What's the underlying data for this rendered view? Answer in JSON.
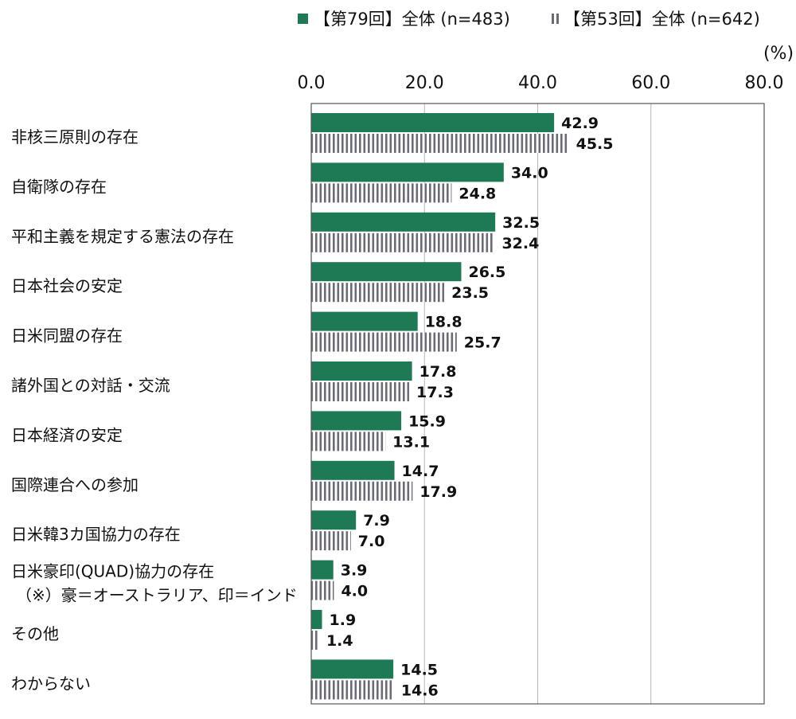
{
  "chart_data": {
    "type": "bar",
    "orientation": "horizontal",
    "unit_label": "(%)",
    "xlim": [
      0,
      80
    ],
    "xticks": [
      "0.0",
      "20.0",
      "40.0",
      "60.0",
      "80.0"
    ],
    "xtick_values": [
      0,
      20,
      40,
      60,
      80
    ],
    "grid": true,
    "legend_position": "top",
    "categories": [
      [
        "非核三原則の存在"
      ],
      [
        "自衛隊の存在"
      ],
      [
        "平和主義を規定する憲法の存在"
      ],
      [
        "日本社会の安定"
      ],
      [
        "日米同盟の存在"
      ],
      [
        "諸外国との対話・交流"
      ],
      [
        "日本経済の安定"
      ],
      [
        "国際連合への参加"
      ],
      [
        "日米韓3カ国協力の存在"
      ],
      [
        "日米豪印(QUAD)協力の存在",
        "（※）豪＝オーストラリア、印＝インド"
      ],
      [
        "その他"
      ],
      [
        "わからない"
      ]
    ],
    "series": [
      {
        "name": "【第79回】全体 (n=483)",
        "color": "#1e7a55",
        "style": "solid",
        "values": [
          42.9,
          34.0,
          32.5,
          26.5,
          18.8,
          17.8,
          15.9,
          14.7,
          7.9,
          3.9,
          1.9,
          14.5
        ],
        "labels": [
          "42.9",
          "34.0",
          "32.5",
          "26.5",
          "18.8",
          "17.8",
          "15.9",
          "14.7",
          "7.9",
          "3.9",
          "1.9",
          "14.5"
        ]
      },
      {
        "name": "【第53回】全体 (n=642)",
        "color": "#6b6b78",
        "style": "vertical-stripes",
        "values": [
          45.5,
          24.8,
          32.4,
          23.5,
          25.7,
          17.3,
          13.1,
          17.9,
          7.0,
          4.0,
          1.4,
          14.6
        ],
        "labels": [
          "45.5",
          "24.8",
          "32.4",
          "23.5",
          "25.7",
          "17.3",
          "13.1",
          "17.9",
          "7.0",
          "4.0",
          "1.4",
          "14.6"
        ]
      }
    ]
  }
}
